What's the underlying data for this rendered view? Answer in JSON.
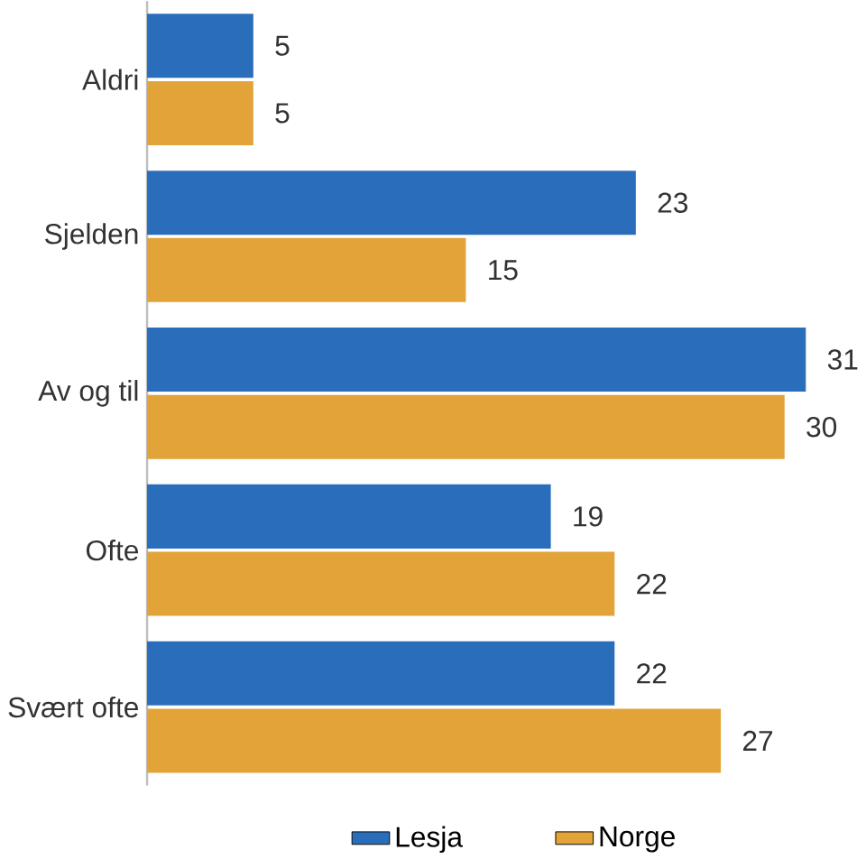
{
  "chart_data": {
    "type": "bar",
    "orientation": "horizontal",
    "categories": [
      "Aldri",
      "Sjelden",
      "Av og til",
      "Ofte",
      "Svært ofte"
    ],
    "series": [
      {
        "name": "Lesja",
        "color": "#2a6ebb",
        "values": [
          5,
          23,
          31,
          19,
          22
        ]
      },
      {
        "name": "Norge",
        "color": "#e2a339",
        "values": [
          5,
          15,
          30,
          22,
          27
        ]
      }
    ],
    "data_labels": true,
    "legend": "bottom"
  }
}
